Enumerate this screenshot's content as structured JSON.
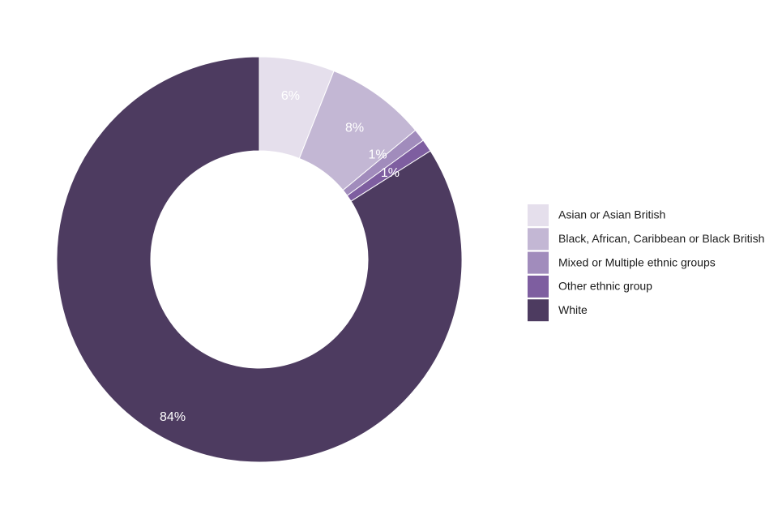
{
  "chart_data": {
    "type": "pie",
    "style": "donut",
    "title": "",
    "categories": [
      "Asian or Asian British",
      "Black, African, Caribbean or Black British",
      "Mixed or Multiple ethnic groups",
      "Other ethnic group",
      "White"
    ],
    "values": [
      6,
      8,
      1,
      1,
      84
    ],
    "labels": [
      "6%",
      "8%",
      "1%",
      "1%",
      "84%"
    ],
    "colors": [
      "#e5dfec",
      "#c3b7d4",
      "#a18cbc",
      "#7e5ea0",
      "#4d3b60"
    ],
    "legend_position": "right",
    "start_angle": "top, clockwise"
  }
}
